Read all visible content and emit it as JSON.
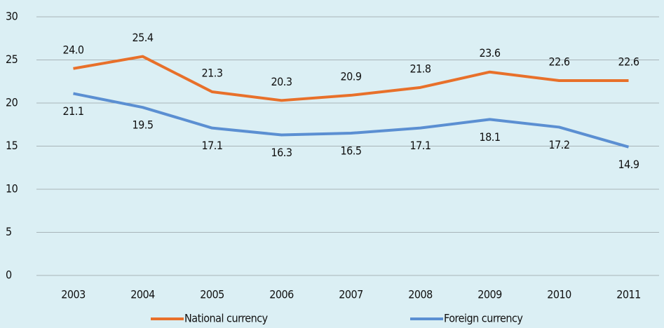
{
  "chart_data": {
    "type": "line",
    "categories": [
      "2003",
      "2004",
      "2005",
      "2006",
      "2007",
      "2008",
      "2009",
      "2010",
      "2011"
    ],
    "series": [
      {
        "name": "National currency",
        "color": "#e8702a",
        "values": [
          24.0,
          25.4,
          21.3,
          20.3,
          20.9,
          21.8,
          23.6,
          22.6,
          22.6
        ],
        "value_labels": [
          "24.0",
          "25.4",
          "21.3",
          "20.3",
          "20.9",
          "21.8",
          "23.6",
          "22.6",
          "22.6"
        ]
      },
      {
        "name": "Foreign currency",
        "color": "#5b8fd2",
        "values": [
          21.1,
          19.5,
          17.1,
          16.3,
          16.5,
          17.1,
          18.1,
          17.2,
          14.9
        ],
        "value_labels": [
          "21.1",
          "19.5",
          "17.1",
          "16.3",
          "16.5",
          "17.1",
          "18.1",
          "17.2",
          "14.9"
        ]
      }
    ],
    "ylim": [
      0,
      30
    ],
    "yticks": [
      0,
      5,
      10,
      15,
      20,
      25,
      30
    ],
    "grid": true,
    "legend": "bottom"
  }
}
